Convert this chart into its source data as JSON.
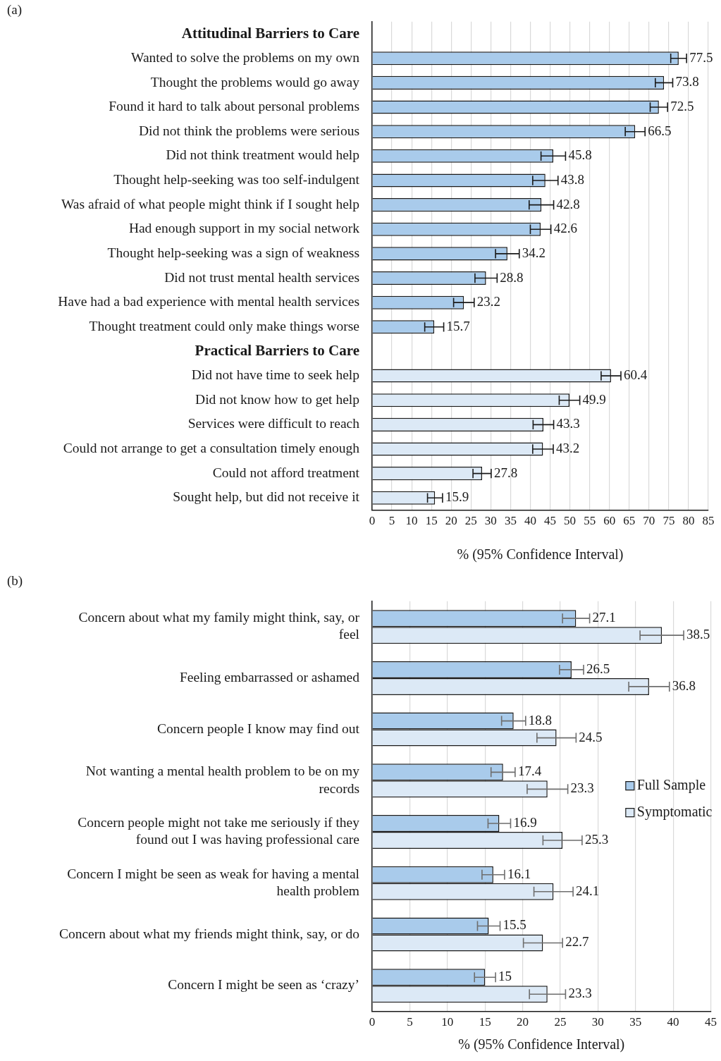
{
  "chart_data": [
    {
      "type": "bar",
      "title": "(a)",
      "orientation": "horizontal",
      "xlabel": "% (95% Confidence Interval)",
      "categories": [
        "Attitudinal Barriers to Care",
        "Wanted to solve the problems on my own",
        "Thought the problems would go away",
        "Found it hard to talk about personal problems",
        "Did not think the problems were serious",
        "Did not think treatment would help",
        "Thought help-seeking was too self-indulgent",
        "Was afraid of what people might think if I sought help",
        "Had enough support in my social network",
        "Thought help-seeking was a sign of weakness",
        "Did not trust mental health services",
        "Have had a bad experience with mental health services",
        "Thought treatment could only make things worse",
        "Practical Barriers to Care",
        "Did not have time to seek help",
        "Did not know how to get help",
        "Services were difficult to reach",
        "Could not arrange to get a consultation timely enough",
        "Could not afford treatment",
        "Sought help, but did not receive it"
      ],
      "values": [
        null,
        77.5,
        73.8,
        72.5,
        66.5,
        45.8,
        43.8,
        42.8,
        42.6,
        34.2,
        28.8,
        23.2,
        15.7,
        null,
        60.4,
        49.9,
        43.3,
        43.2,
        27.8,
        15.9
      ],
      "errors": [
        null,
        2.0,
        2.2,
        2.2,
        2.5,
        3.1,
        3.2,
        3.1,
        2.6,
        3.0,
        2.8,
        2.6,
        2.4,
        null,
        2.5,
        2.6,
        2.6,
        2.6,
        2.3,
        1.9
      ],
      "colors": [
        "#a9cbeb",
        "#a9cbeb",
        "#a9cbeb",
        "#a9cbeb",
        "#a9cbeb",
        "#a9cbeb",
        "#a9cbeb",
        "#a9cbeb",
        "#a9cbeb",
        "#a9cbeb",
        "#a9cbeb",
        "#a9cbeb",
        "#a9cbeb",
        "#dce9f6",
        "#dce9f6",
        "#dce9f6",
        "#dce9f6",
        "#dce9f6",
        "#dce9f6",
        "#dce9f6"
      ],
      "xlim": [
        0,
        85
      ],
      "xticks": [
        0,
        5,
        10,
        15,
        20,
        25,
        30,
        35,
        40,
        45,
        50,
        55,
        60,
        65,
        70,
        75,
        80,
        85
      ],
      "grid": "x",
      "data_labels": true,
      "legend": false
    },
    {
      "type": "bar",
      "title": "(b)",
      "orientation": "horizontal",
      "xlabel": "% (95% Confidence Interval)",
      "categories": [
        "Concern about what my family might think, say, or feel",
        "Feeling embarrassed or ashamed",
        "Concern people I know may find out",
        "Not wanting a mental health problem to be on my records",
        "Concern people might not take me seriously if they found out I was having professional care",
        "Concern I might be seen as weak for having a mental health problem",
        "Concern about what my friends might think, say, or do",
        "Concern I might be seen as ‘crazy’"
      ],
      "series": [
        {
          "name": "Full Sample",
          "color": "#a9cbeb",
          "values": [
            27.1,
            26.5,
            18.8,
            17.4,
            16.9,
            16.1,
            15.5,
            15
          ],
          "errors": [
            1.8,
            1.6,
            1.6,
            1.6,
            1.5,
            1.5,
            1.5,
            1.4
          ]
        },
        {
          "name": "Symptomatic",
          "color": "#dce9f6",
          "values": [
            38.5,
            36.8,
            24.5,
            23.3,
            25.3,
            24.1,
            22.7,
            23.3
          ],
          "errors": [
            2.9,
            2.7,
            2.6,
            2.7,
            2.6,
            2.6,
            2.6,
            2.4
          ]
        }
      ],
      "xlim": [
        0,
        45
      ],
      "xticks": [
        0,
        5,
        10,
        15,
        20,
        25,
        30,
        35,
        40,
        45
      ],
      "grid": "x",
      "data_labels": true,
      "legend": "right"
    }
  ]
}
